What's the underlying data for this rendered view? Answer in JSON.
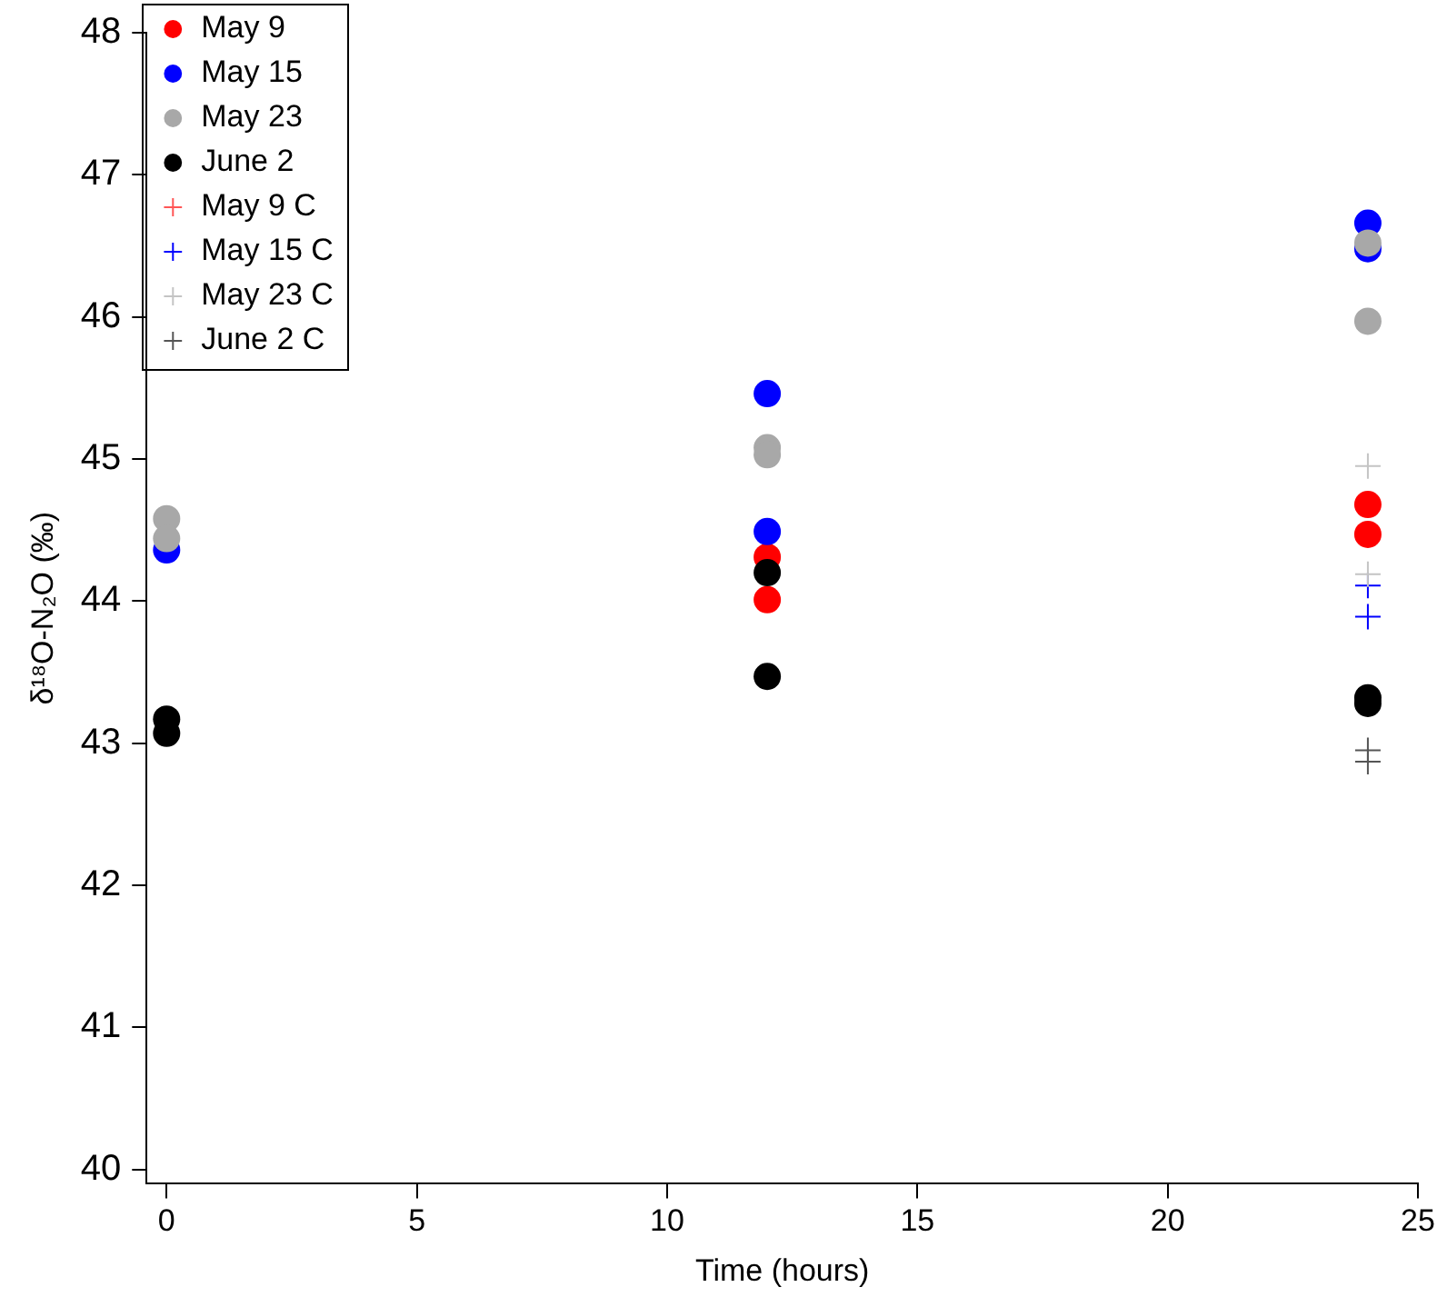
{
  "chart_data": {
    "type": "scatter",
    "xlabel": "Time (hours)",
    "ylabel": "δ¹⁸O-N₂O (‰)",
    "xlim": [
      -0.4,
      25
    ],
    "xticks": [
      0,
      5,
      10,
      15,
      20,
      25
    ],
    "ylim": [
      39.9,
      48
    ],
    "yticks": [
      40,
      41,
      42,
      43,
      44,
      45,
      46,
      47,
      48
    ],
    "grid": false,
    "legend": "top left",
    "series": [
      {
        "name": "May 9",
        "color": "#ff0000",
        "marker": "circle",
        "x": [
          12,
          12,
          24,
          24
        ],
        "values": [
          44.31,
          44.01,
          44.68,
          44.47
        ]
      },
      {
        "name": "May 15",
        "color": "#0000ff",
        "marker": "circle",
        "x": [
          0,
          12,
          12,
          24,
          24
        ],
        "values": [
          44.36,
          45.46,
          44.49,
          46.66,
          46.48
        ]
      },
      {
        "name": "May 23",
        "color": "#a8a8a8",
        "marker": "circle",
        "x": [
          0,
          0,
          12,
          12,
          24,
          24
        ],
        "values": [
          44.58,
          44.44,
          45.08,
          45.03,
          46.52,
          45.97
        ]
      },
      {
        "name": "June 2",
        "color": "#000000",
        "marker": "circle",
        "x": [
          0,
          0,
          12,
          12,
          24,
          24
        ],
        "values": [
          43.17,
          43.07,
          44.2,
          43.47,
          43.32,
          43.28
        ]
      },
      {
        "name": "May 9 C",
        "color": "#ff5555",
        "marker": "cross"
      },
      {
        "name": "May 15 C",
        "color": "#0000ff",
        "marker": "cross",
        "x": [
          24,
          24
        ],
        "values": [
          44.11,
          43.89
        ]
      },
      {
        "name": "May 23 C",
        "color": "#c4c4c4",
        "marker": "cross",
        "x": [
          24,
          24
        ],
        "values": [
          44.95,
          44.19
        ]
      },
      {
        "name": "June 2 C",
        "color": "#555555",
        "marker": "cross",
        "x": [
          24,
          24
        ],
        "values": [
          42.95,
          42.87
        ]
      }
    ]
  }
}
